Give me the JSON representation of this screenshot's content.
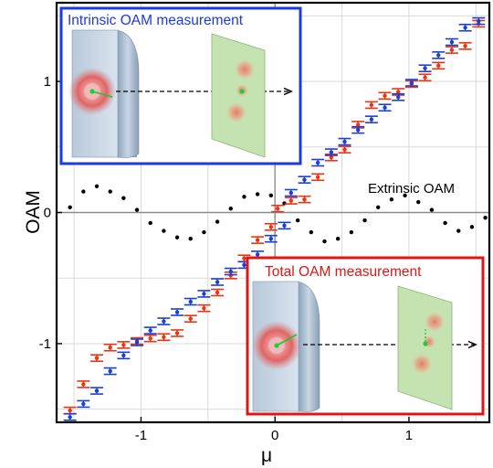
{
  "chart_data": {
    "type": "scatter",
    "xlabel": "μ",
    "ylabel": "OAM",
    "xlim": [
      -1.63,
      1.6
    ],
    "ylim": [
      -1.6,
      1.6
    ],
    "x_ticks": [
      -1,
      0,
      1
    ],
    "x_tick_labels": [
      "-1",
      "0",
      "1"
    ],
    "y_ticks": [
      -1,
      0,
      1
    ],
    "y_tick_labels": [
      "-1",
      "0",
      "1"
    ],
    "grid": true,
    "colors": {
      "blue": "#1a3fd6",
      "red": "#ee3311",
      "black": "#000000",
      "inset_blue": "#1d39e0",
      "inset_red": "#e01515"
    },
    "series": [
      {
        "color": "blue",
        "marker": "errorbar",
        "points": [
          [
            -1.53,
            -1.56
          ],
          [
            -1.43,
            -1.46
          ],
          [
            -1.33,
            -1.36
          ],
          [
            -1.23,
            -1.21
          ],
          [
            -1.13,
            -1.09
          ],
          [
            -1.03,
            -0.99
          ],
          [
            -0.93,
            -0.9
          ],
          [
            -0.83,
            -0.83
          ],
          [
            -0.73,
            -0.76
          ],
          [
            -0.63,
            -0.68
          ],
          [
            -0.53,
            -0.62
          ],
          [
            -0.43,
            -0.53
          ],
          [
            -0.33,
            -0.45
          ],
          [
            -0.23,
            -0.4
          ],
          [
            -0.13,
            -0.32
          ],
          [
            -0.03,
            -0.2
          ],
          [
            0.07,
            -0.1
          ],
          [
            0.12,
            0.15
          ],
          [
            0.22,
            0.25
          ],
          [
            0.32,
            0.38
          ],
          [
            0.42,
            0.46
          ],
          [
            0.52,
            0.54
          ],
          [
            0.62,
            0.63
          ],
          [
            0.72,
            0.71
          ],
          [
            0.82,
            0.8
          ],
          [
            0.92,
            0.88
          ],
          [
            1.02,
            0.99
          ],
          [
            1.12,
            1.1
          ],
          [
            1.22,
            1.2
          ],
          [
            1.32,
            1.3
          ],
          [
            1.42,
            1.41
          ],
          [
            1.52,
            1.46
          ]
        ]
      },
      {
        "color": "red",
        "marker": "errorbar",
        "points": [
          [
            -1.53,
            -1.51
          ],
          [
            -1.43,
            -1.31
          ],
          [
            -1.33,
            -1.11
          ],
          [
            -1.23,
            -1.03
          ],
          [
            -1.13,
            -1.01
          ],
          [
            -1.03,
            -0.98
          ],
          [
            -0.93,
            -0.96
          ],
          [
            -0.83,
            -0.95
          ],
          [
            -0.73,
            -0.92
          ],
          [
            -0.63,
            -0.81
          ],
          [
            -0.53,
            -0.73
          ],
          [
            -0.43,
            -0.61
          ],
          [
            -0.33,
            -0.48
          ],
          [
            -0.23,
            -0.35
          ],
          [
            -0.13,
            -0.21
          ],
          [
            -0.03,
            -0.11
          ],
          [
            0.02,
            0.03
          ],
          [
            0.12,
            0.09
          ],
          [
            0.22,
            0.1
          ],
          [
            0.32,
            0.27
          ],
          [
            0.42,
            0.42
          ],
          [
            0.52,
            0.48
          ],
          [
            0.62,
            0.67
          ],
          [
            0.72,
            0.82
          ],
          [
            0.82,
            0.89
          ],
          [
            0.92,
            0.92
          ],
          [
            1.02,
            0.98
          ],
          [
            1.12,
            1.03
          ],
          [
            1.22,
            1.12
          ],
          [
            1.32,
            1.24
          ],
          [
            1.42,
            1.27
          ],
          [
            1.52,
            1.44
          ]
        ]
      },
      {
        "color": "black",
        "marker": "dot",
        "label": "Extrinsic OAM",
        "points": [
          [
            -1.53,
            0.04
          ],
          [
            -1.43,
            0.16
          ],
          [
            -1.33,
            0.2
          ],
          [
            -1.23,
            0.16
          ],
          [
            -1.13,
            0.11
          ],
          [
            -1.03,
            0.02
          ],
          [
            -0.93,
            -0.08
          ],
          [
            -0.83,
            -0.14
          ],
          [
            -0.73,
            -0.19
          ],
          [
            -0.63,
            -0.2
          ],
          [
            -0.53,
            -0.15
          ],
          [
            -0.43,
            -0.07
          ],
          [
            -0.33,
            0.03
          ],
          [
            -0.23,
            0.12
          ],
          [
            -0.13,
            0.14
          ],
          [
            -0.03,
            0.13
          ],
          [
            0.07,
            0.07
          ],
          [
            0.17,
            -0.06
          ],
          [
            0.27,
            -0.15
          ],
          [
            0.37,
            -0.22
          ],
          [
            0.47,
            -0.2
          ],
          [
            0.57,
            -0.15
          ],
          [
            0.67,
            -0.06
          ],
          [
            0.77,
            0.04
          ],
          [
            0.87,
            0.1
          ],
          [
            0.97,
            0.13
          ],
          [
            1.07,
            0.08
          ],
          [
            1.17,
            0.02
          ],
          [
            1.27,
            -0.08
          ],
          [
            1.37,
            -0.14
          ],
          [
            1.47,
            -0.11
          ],
          [
            1.57,
            -0.04
          ]
        ]
      }
    ],
    "annotations": [
      {
        "text": "Extrinsic OAM"
      }
    ],
    "insets": [
      {
        "title": "Intrinsic OAM measurement",
        "color": "inset_blue"
      },
      {
        "title": "Total OAM measurement",
        "color": "inset_red"
      }
    ]
  }
}
